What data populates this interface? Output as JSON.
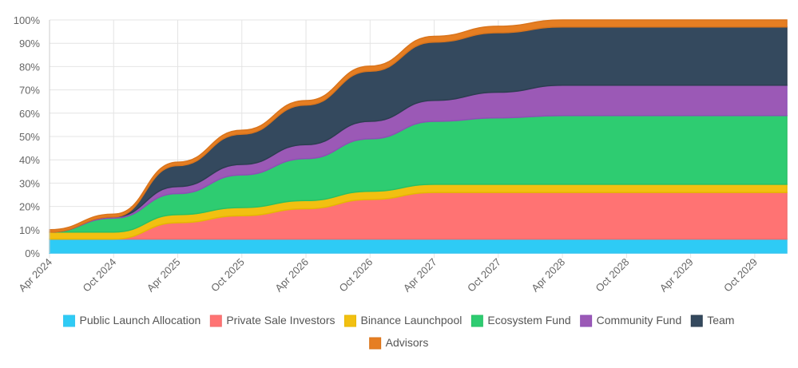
{
  "chart_data": {
    "type": "area",
    "stacked": true,
    "title": "",
    "xlabel": "",
    "ylabel": "",
    "ylim": [
      0,
      100
    ],
    "y_ticks": [
      "0%",
      "10%",
      "20%",
      "30%",
      "40%",
      "50%",
      "60%",
      "70%",
      "80%",
      "90%",
      "100%"
    ],
    "x": [
      "Apr 2024",
      "Oct 2024",
      "Apr 2025",
      "Oct 2025",
      "Apr 2026",
      "Oct 2026",
      "Apr 2027",
      "Oct 2027",
      "Apr 2028",
      "Oct 2028",
      "Apr 2029",
      "Oct 2029"
    ],
    "x_ticks": [
      "Apr 2024",
      "Oct 2024",
      "Apr 2025",
      "Oct 2025",
      "Apr 2026",
      "Oct 2026",
      "Apr 2027",
      "Oct 2027",
      "Apr 2028",
      "Oct 2028",
      "Apr 2029",
      "Oct 2029"
    ],
    "x_min": 0,
    "x_max": 69,
    "series": [
      {
        "name": "Public Launch Allocation",
        "color": "#36c5f0",
        "fill": "#2ecbf5",
        "values": [
          6,
          6,
          6,
          6,
          6,
          6,
          6,
          6,
          6,
          6,
          6,
          6
        ]
      },
      {
        "name": "Private Sale Investors",
        "color": "#f26d6d",
        "fill": "#ff7373",
        "values": [
          0,
          0,
          7,
          10,
          13,
          17,
          20,
          20,
          20,
          20,
          20,
          20
        ]
      },
      {
        "name": "Binance Launchpool",
        "color": "#e6b800",
        "fill": "#f2c011",
        "values": [
          3,
          3,
          3.5,
          3.5,
          3.5,
          3.5,
          3.5,
          3.5,
          3.5,
          3.5,
          3.5,
          3.5
        ]
      },
      {
        "name": "Ecosystem Fund",
        "color": "#27c064",
        "fill": "#2ecc71",
        "values": [
          0,
          6,
          9,
          14,
          18,
          22.5,
          27,
          28.5,
          29.5,
          29.5,
          29.5,
          29.5
        ]
      },
      {
        "name": "Community Fund",
        "color": "#8e4fb5",
        "fill": "#9b59b6",
        "values": [
          0,
          0.5,
          3,
          4.5,
          6,
          7.5,
          9,
          11,
          13,
          13,
          13,
          13
        ]
      },
      {
        "name": "Team",
        "color": "#2c3e50",
        "fill": "#34495e",
        "values": [
          0,
          0,
          9,
          13,
          17,
          21.5,
          25,
          25.5,
          25,
          25,
          25,
          25
        ]
      },
      {
        "name": "Advisors",
        "color": "#d9741c",
        "fill": "#e67e22",
        "values": [
          1,
          1.2,
          1.5,
          1.7,
          1.9,
          2.2,
          2.5,
          2.8,
          3,
          3,
          3,
          3
        ]
      }
    ],
    "legend_position": "bottom",
    "grid": true
  }
}
